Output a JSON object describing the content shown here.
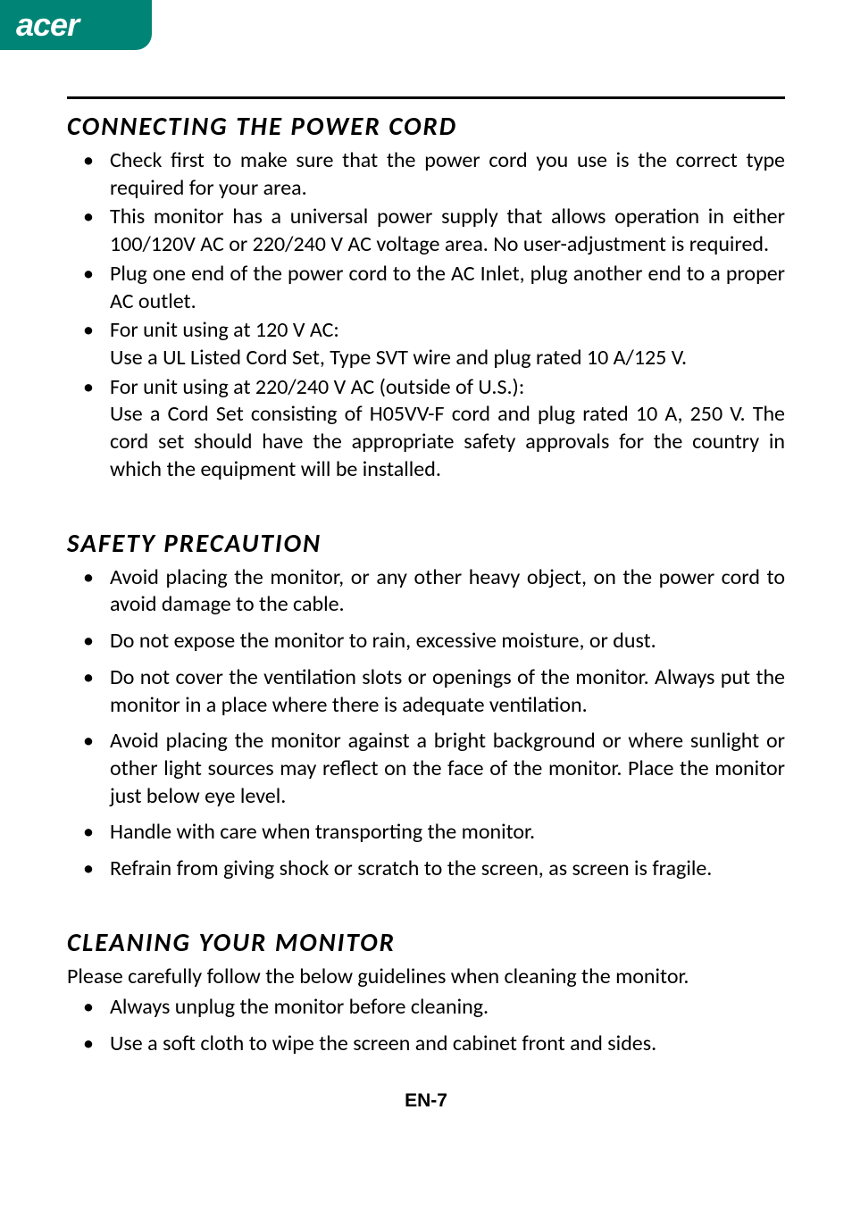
{
  "brand": {
    "logo_text": "acer"
  },
  "colors": {
    "tab_bg": "#008475",
    "text": "#000000",
    "page_bg": "#ffffff"
  },
  "typography": {
    "heading_fontsize": 29,
    "body_fontsize": 24,
    "heading_style": "bold italic",
    "heading_letter_spacing": 2
  },
  "sections": [
    {
      "heading": "CONNECTING THE POWER CORD",
      "intro": null,
      "bullets": [
        "Check first to make sure that the power cord you use is the correct type required for your area.",
        "This monitor has a universal power supply that allows operation in either 100/120V AC or 220/240 V AC voltage area. No user-adjustment is required.",
        "Plug one end of the power cord to the AC Inlet, plug another end to a proper AC outlet.",
        "For unit using at 120 V AC:\nUse a UL Listed Cord Set, Type SVT wire and plug rated 10 A/125 V.",
        "For unit using at 220/240 V AC (outside of U.S.):\nUse a Cord Set consisting of H05VV-F cord and plug rated 10 A, 250 V. The cord set should have the appropriate safety approvals for the country in which the equipment will be installed."
      ]
    },
    {
      "heading": "SAFETY PRECAUTION",
      "intro": null,
      "bullets": [
        "Avoid placing the monitor, or any other heavy object, on the power cord to avoid damage to the cable.",
        "Do not expose the monitor to rain, excessive moisture, or dust.",
        "Do not cover the ventilation slots or openings of the monitor. Always put the monitor in a place where there is adequate ventilation.",
        "Avoid placing the monitor against a bright background or where sunlight or other light sources may reflect on the face of the monitor. Place the monitor just below eye level.",
        "Handle with care when transporting the monitor.",
        "Refrain from giving shock or scratch to the screen, as screen is fragile."
      ]
    },
    {
      "heading": "CLEANING YOUR MONITOR",
      "intro": "Please carefully follow the below guidelines when cleaning the monitor.",
      "bullets": [
        "Always unplug the monitor before cleaning.",
        "Use a soft cloth to wipe the screen and cabinet front and sides."
      ]
    }
  ],
  "page_number": "EN-7"
}
